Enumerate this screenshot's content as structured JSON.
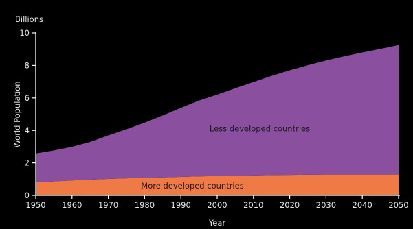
{
  "chart_data": {
    "type": "area",
    "stacked": true,
    "units_label": "Billions",
    "ylabel": "World Population",
    "xlabel": "Year",
    "xlim": [
      1950,
      2050
    ],
    "ylim": [
      0,
      10
    ],
    "x_ticks": [
      1950,
      1960,
      1970,
      1980,
      1990,
      2000,
      2010,
      2020,
      2030,
      2040,
      2050
    ],
    "y_ticks": [
      0,
      2,
      4,
      6,
      8,
      10
    ],
    "x": [
      1950,
      1955,
      1960,
      1965,
      1970,
      1975,
      1980,
      1985,
      1990,
      1995,
      2000,
      2005,
      2010,
      2015,
      2020,
      2025,
      2030,
      2035,
      2040,
      2045,
      2050
    ],
    "series": [
      {
        "name": "More developed countries",
        "color": "#f07a45",
        "values": [
          0.81,
          0.86,
          0.92,
          0.97,
          1.01,
          1.05,
          1.08,
          1.11,
          1.14,
          1.17,
          1.19,
          1.21,
          1.23,
          1.25,
          1.26,
          1.27,
          1.28,
          1.28,
          1.28,
          1.28,
          1.28
        ]
      },
      {
        "name": "Less developed countries",
        "color": "#8a4f9e",
        "values": [
          1.77,
          1.91,
          2.07,
          2.32,
          2.68,
          3.02,
          3.4,
          3.81,
          4.25,
          4.67,
          5.01,
          5.39,
          5.75,
          6.11,
          6.44,
          6.74,
          7.02,
          7.28,
          7.52,
          7.74,
          7.97
        ]
      }
    ],
    "grid": false,
    "legend": "none"
  }
}
